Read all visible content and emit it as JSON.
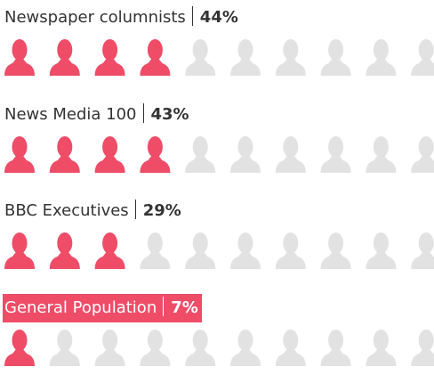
{
  "chart_data": {
    "type": "pictogram",
    "categories": [
      "Newspaper columnists",
      "News Media 100",
      "BBC Executives",
      "General Population"
    ],
    "values": [
      44,
      43,
      29,
      7
    ],
    "value_labels": [
      "44%",
      "43%",
      "29%",
      "7%"
    ],
    "xlim": [
      0,
      100
    ],
    "color": "#ef4c68",
    "empty_color": "#e2e2e2",
    "highlight": 3
  }
}
